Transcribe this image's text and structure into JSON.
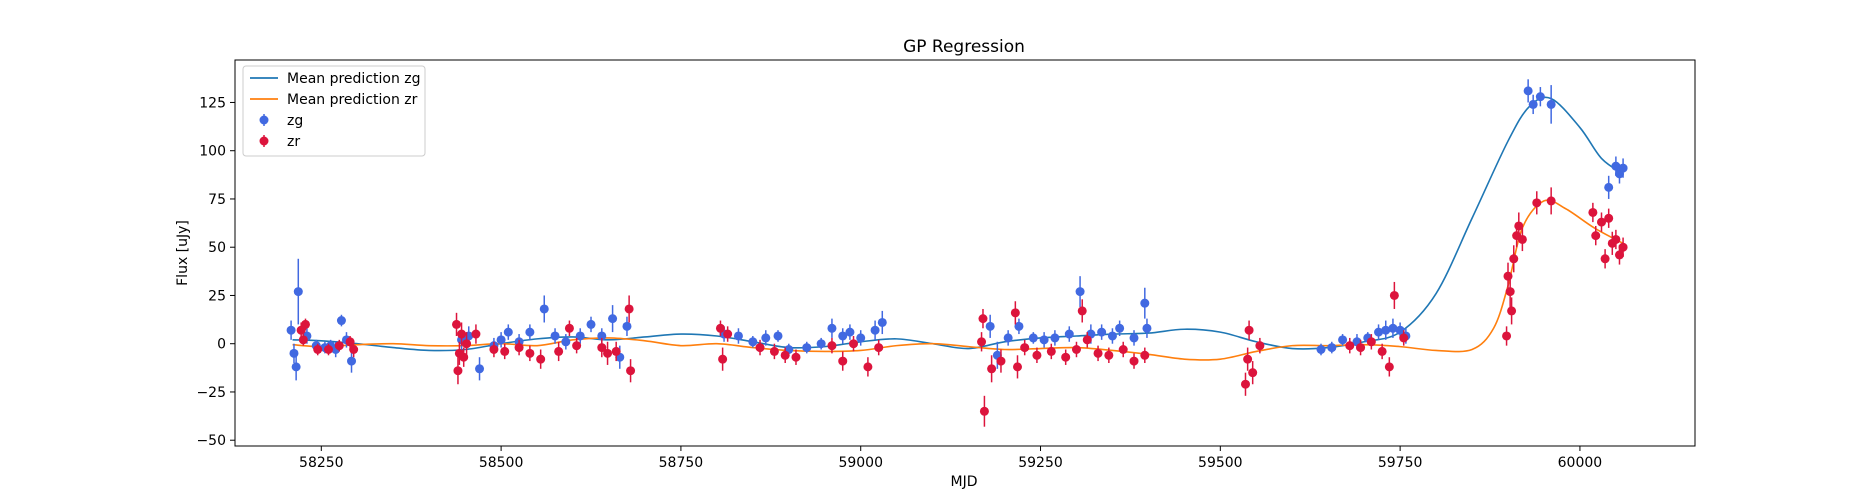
{
  "chart_data": {
    "type": "scatter",
    "title": "GP Regression",
    "xlabel": "MJD",
    "ylabel": "Flux [uJy]",
    "xlim": [
      58130,
      60160
    ],
    "ylim": [
      -53,
      147
    ],
    "xticks": [
      58250,
      58500,
      58750,
      59000,
      59250,
      59500,
      59750,
      60000
    ],
    "yticks": [
      -50,
      -25,
      0,
      25,
      50,
      75,
      100,
      125
    ],
    "legend_position": "upper left",
    "colors": {
      "mean_zg": "#1f77b4",
      "mean_zr": "#ff7f0e",
      "zg": "#4169e1",
      "zr": "#dc143c"
    },
    "series": [
      {
        "name": "Mean prediction zg",
        "kind": "line",
        "color": "#1f77b4",
        "x": [
          58210,
          58250,
          58300,
          58350,
          58400,
          58450,
          58500,
          58550,
          58600,
          58650,
          58700,
          58750,
          58800,
          58850,
          58900,
          58950,
          59000,
          59050,
          59100,
          59150,
          59200,
          59250,
          59300,
          59350,
          59400,
          59450,
          59500,
          59550,
          59600,
          59650,
          59700,
          59750,
          59800,
          59850,
          59900,
          59930,
          59960,
          60000,
          60030,
          60060
        ],
        "y": [
          2,
          1.5,
          0,
          -2,
          -3.5,
          -3,
          0,
          2.5,
          3.5,
          2,
          3.5,
          5,
          4,
          1,
          -2,
          -1.5,
          1,
          2.5,
          0,
          -2.5,
          1,
          3,
          4,
          5,
          5.5,
          7.5,
          6,
          1,
          -2.5,
          -2,
          1,
          6,
          26,
          65,
          105,
          123,
          127,
          112,
          96,
          88
        ]
      },
      {
        "name": "Mean prediction zr",
        "kind": "line",
        "color": "#ff7f0e",
        "x": [
          58210,
          58250,
          58300,
          58350,
          58400,
          58450,
          58500,
          58550,
          58600,
          58650,
          58700,
          58750,
          58800,
          58850,
          58900,
          58950,
          59000,
          59050,
          59100,
          59150,
          59200,
          59250,
          59300,
          59350,
          59400,
          59450,
          59500,
          59550,
          59600,
          59650,
          59700,
          59750,
          59800,
          59850,
          59880,
          59900,
          59920,
          59950,
          59980,
          60020,
          60060
        ],
        "y": [
          -0.5,
          -1.5,
          -0.5,
          0,
          -1,
          -1,
          0,
          -1,
          2,
          3,
          1.5,
          -1,
          0,
          -2,
          -3.5,
          -4,
          -3.5,
          -1,
          0,
          -1.5,
          -3,
          -2.5,
          -2,
          -3.5,
          -5.5,
          -8,
          -8,
          -4,
          -1,
          -1,
          -0.5,
          -1.5,
          -3.5,
          -3,
          8,
          30,
          60,
          74,
          70,
          60,
          52
        ]
      },
      {
        "name": "zg",
        "kind": "errorbar",
        "color": "#4169e1",
        "points": [
          [
            58208,
            7,
            5
          ],
          [
            58212,
            -5,
            5
          ],
          [
            58215,
            -12,
            7
          ],
          [
            58218,
            27,
            17
          ],
          [
            58230,
            4,
            4
          ],
          [
            58243,
            -1,
            3
          ],
          [
            58255,
            -2,
            3
          ],
          [
            58263,
            -1,
            3
          ],
          [
            58270,
            -3,
            4
          ],
          [
            58278,
            12,
            3
          ],
          [
            58285,
            2,
            4
          ],
          [
            58292,
            -9,
            6
          ],
          [
            58445,
            2,
            5
          ],
          [
            58455,
            4,
            5
          ],
          [
            58470,
            -13,
            6
          ],
          [
            58490,
            -1,
            4
          ],
          [
            58500,
            2,
            4
          ],
          [
            58510,
            6,
            4
          ],
          [
            58525,
            1,
            4
          ],
          [
            58540,
            6,
            4
          ],
          [
            58560,
            18,
            7
          ],
          [
            58575,
            4,
            4
          ],
          [
            58590,
            1,
            4
          ],
          [
            58610,
            4,
            4
          ],
          [
            58625,
            10,
            4
          ],
          [
            58640,
            4,
            4
          ],
          [
            58655,
            13,
            7
          ],
          [
            58665,
            -7,
            6
          ],
          [
            58675,
            9,
            5
          ],
          [
            58810,
            5,
            4
          ],
          [
            58830,
            4,
            4
          ],
          [
            58850,
            1,
            3
          ],
          [
            58868,
            3,
            4
          ],
          [
            58885,
            4,
            3
          ],
          [
            58900,
            -3,
            3
          ],
          [
            58925,
            -2,
            3
          ],
          [
            58945,
            0,
            3
          ],
          [
            58960,
            8,
            5
          ],
          [
            58975,
            4,
            4
          ],
          [
            58985,
            6,
            4
          ],
          [
            59000,
            3,
            4
          ],
          [
            59020,
            7,
            5
          ],
          [
            59030,
            11,
            6
          ],
          [
            59180,
            9,
            6
          ],
          [
            59190,
            -6,
            7
          ],
          [
            59205,
            3,
            4
          ],
          [
            59220,
            9,
            4
          ],
          [
            59240,
            3,
            3
          ],
          [
            59255,
            2,
            4
          ],
          [
            59270,
            3,
            4
          ],
          [
            59290,
            5,
            4
          ],
          [
            59305,
            27,
            8
          ],
          [
            59320,
            5,
            5
          ],
          [
            59335,
            6,
            4
          ],
          [
            59350,
            4,
            4
          ],
          [
            59360,
            8,
            4
          ],
          [
            59380,
            3,
            4
          ],
          [
            59395,
            21,
            8
          ],
          [
            59398,
            8,
            5
          ],
          [
            59640,
            -3,
            3
          ],
          [
            59655,
            -2,
            3
          ],
          [
            59670,
            2,
            3
          ],
          [
            59690,
            1,
            4
          ],
          [
            59705,
            3,
            3
          ],
          [
            59720,
            6,
            4
          ],
          [
            59730,
            7,
            5
          ],
          [
            59740,
            8,
            5
          ],
          [
            59750,
            7,
            4
          ],
          [
            59758,
            4,
            4
          ],
          [
            59928,
            131,
            6
          ],
          [
            59935,
            124,
            5
          ],
          [
            59945,
            128,
            5
          ],
          [
            59960,
            124,
            10
          ],
          [
            60040,
            81,
            6
          ],
          [
            60050,
            92,
            5
          ],
          [
            60055,
            88,
            5
          ],
          [
            60060,
            91,
            5
          ]
        ]
      },
      {
        "name": "zr",
        "kind": "errorbar",
        "color": "#dc143c",
        "points": [
          [
            58222,
            7,
            4
          ],
          [
            58228,
            10,
            3
          ],
          [
            58225,
            2,
            3
          ],
          [
            58245,
            -3,
            3
          ],
          [
            58260,
            -3,
            3
          ],
          [
            58275,
            -1,
            3
          ],
          [
            58290,
            1,
            3
          ],
          [
            58295,
            -3,
            4
          ],
          [
            58438,
            10,
            6
          ],
          [
            58440,
            -14,
            7
          ],
          [
            58442,
            -5,
            6
          ],
          [
            58445,
            5,
            6
          ],
          [
            58448,
            -7,
            5
          ],
          [
            58452,
            0,
            6
          ],
          [
            58465,
            5,
            5
          ],
          [
            58490,
            -3,
            4
          ],
          [
            58505,
            -4,
            4
          ],
          [
            58525,
            -2,
            4
          ],
          [
            58540,
            -5,
            4
          ],
          [
            58555,
            -8,
            5
          ],
          [
            58580,
            -4,
            5
          ],
          [
            58595,
            8,
            4
          ],
          [
            58605,
            -1,
            4
          ],
          [
            58640,
            -2,
            5
          ],
          [
            58648,
            -5,
            6
          ],
          [
            58660,
            -4,
            5
          ],
          [
            58678,
            18,
            7
          ],
          [
            58680,
            -14,
            6
          ],
          [
            58805,
            8,
            4
          ],
          [
            58808,
            -8,
            6
          ],
          [
            58815,
            5,
            4
          ],
          [
            58860,
            -2,
            4
          ],
          [
            58880,
            -4,
            4
          ],
          [
            58895,
            -6,
            4
          ],
          [
            58910,
            -7,
            4
          ],
          [
            58960,
            -1,
            4
          ],
          [
            58975,
            -9,
            5
          ],
          [
            58990,
            0,
            4
          ],
          [
            59010,
            -12,
            5
          ],
          [
            59025,
            -2,
            4
          ],
          [
            59168,
            1,
            5
          ],
          [
            59170,
            13,
            5
          ],
          [
            59172,
            -35,
            8
          ],
          [
            59182,
            -13,
            7
          ],
          [
            59195,
            -9,
            6
          ],
          [
            59215,
            16,
            6
          ],
          [
            59218,
            -12,
            6
          ],
          [
            59228,
            -2,
            4
          ],
          [
            59245,
            -6,
            4
          ],
          [
            59265,
            -4,
            4
          ],
          [
            59285,
            -7,
            4
          ],
          [
            59300,
            -3,
            4
          ],
          [
            59308,
            17,
            6
          ],
          [
            59315,
            2,
            4
          ],
          [
            59330,
            -5,
            4
          ],
          [
            59345,
            -6,
            4
          ],
          [
            59365,
            -3,
            4
          ],
          [
            59380,
            -9,
            4
          ],
          [
            59395,
            -6,
            4
          ],
          [
            59535,
            -21,
            6
          ],
          [
            59538,
            -8,
            6
          ],
          [
            59540,
            7,
            5
          ],
          [
            59545,
            -15,
            6
          ],
          [
            59555,
            -1,
            4
          ],
          [
            59680,
            -1,
            4
          ],
          [
            59695,
            -2,
            4
          ],
          [
            59710,
            1,
            4
          ],
          [
            59725,
            -4,
            4
          ],
          [
            59735,
            -12,
            5
          ],
          [
            59742,
            25,
            7
          ],
          [
            59755,
            3,
            4
          ],
          [
            59898,
            4,
            5
          ],
          [
            59900,
            35,
            7
          ],
          [
            59903,
            27,
            8
          ],
          [
            59905,
            17,
            7
          ],
          [
            59908,
            44,
            7
          ],
          [
            59912,
            56,
            6
          ],
          [
            59915,
            61,
            7
          ],
          [
            59920,
            54,
            6
          ],
          [
            59940,
            73,
            6
          ],
          [
            59960,
            74,
            7
          ],
          [
            60018,
            68,
            5
          ],
          [
            60022,
            56,
            5
          ],
          [
            60030,
            63,
            5
          ],
          [
            60035,
            44,
            5
          ],
          [
            60040,
            65,
            5
          ],
          [
            60045,
            52,
            6
          ],
          [
            60050,
            54,
            5
          ],
          [
            60055,
            46,
            5
          ],
          [
            60060,
            50,
            5
          ]
        ]
      }
    ]
  }
}
